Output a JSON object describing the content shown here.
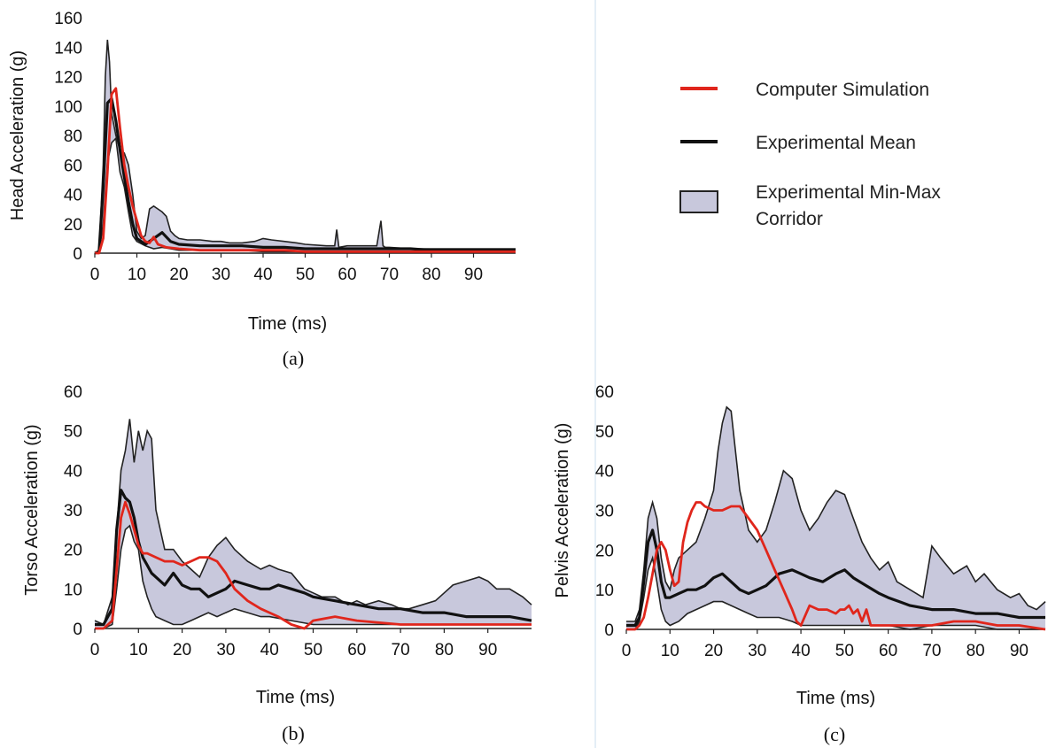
{
  "legend": {
    "simulation": "Computer Simulation",
    "mean": "Experimental Mean",
    "corridor_line1": "Experimental Min-Max",
    "corridor_line2": "Corridor"
  },
  "colors": {
    "simulation": "#e0261c",
    "mean": "#111111",
    "corridor_fill": "#c8c8dc",
    "corridor_edge": "#222222"
  },
  "chart_data": [
    {
      "type": "line",
      "caption": "(a)",
      "xlabel": "Time (ms)",
      "ylabel": "Head Acceleration (g)",
      "xlim": [
        0,
        100
      ],
      "ylim": [
        0,
        160
      ],
      "xticks": [
        0,
        10,
        20,
        30,
        40,
        50,
        60,
        70,
        80,
        90
      ],
      "yticks": [
        0,
        20,
        40,
        60,
        80,
        100,
        120,
        140,
        160
      ],
      "series": [
        {
          "role": "max",
          "x": [
            0,
            1,
            2,
            2.5,
            3,
            3.5,
            4,
            5,
            6,
            7,
            8,
            9,
            10,
            11,
            12,
            13,
            14,
            15,
            16,
            17,
            18,
            19,
            20,
            22,
            25,
            28,
            30,
            32,
            35,
            38,
            40,
            42,
            45,
            48,
            50,
            55,
            57,
            57.5,
            58,
            60,
            65,
            67,
            68,
            68.5,
            69,
            70,
            75,
            80,
            85,
            90,
            95,
            100
          ],
          "y": [
            0,
            2,
            60,
            120,
            145,
            130,
            95,
            80,
            70,
            68,
            60,
            40,
            15,
            10,
            12,
            30,
            32,
            30,
            28,
            25,
            15,
            12,
            10,
            9,
            9,
            8,
            8,
            7,
            7,
            8,
            10,
            9,
            8,
            7,
            6,
            5,
            5,
            16,
            4,
            5,
            5,
            5,
            22,
            5,
            4,
            4,
            3,
            3,
            3,
            3,
            3,
            3
          ]
        },
        {
          "role": "min",
          "x": [
            0,
            1,
            2,
            3,
            4,
            5,
            6,
            7,
            8,
            9,
            10,
            12,
            14,
            16,
            18,
            20,
            25,
            30,
            35,
            40,
            45,
            50,
            55,
            60,
            65,
            70,
            75,
            80,
            85,
            90,
            95,
            100
          ],
          "y": [
            0,
            0,
            20,
            62,
            75,
            78,
            55,
            45,
            28,
            12,
            8,
            5,
            3,
            4,
            3,
            2,
            2,
            2,
            2,
            1,
            1,
            1,
            1,
            1,
            1,
            1,
            1,
            1,
            1,
            1,
            1,
            1
          ]
        },
        {
          "role": "mean",
          "x": [
            0,
            1,
            2,
            3,
            4,
            5,
            6,
            7,
            8,
            9,
            10,
            12,
            14,
            16,
            18,
            20,
            25,
            30,
            35,
            40,
            45,
            50,
            55,
            60,
            65,
            70,
            75,
            80,
            85,
            90,
            95,
            100
          ],
          "y": [
            0,
            1,
            45,
            102,
            105,
            90,
            70,
            52,
            35,
            20,
            10,
            6,
            10,
            14,
            8,
            6,
            5,
            5,
            5,
            4,
            4,
            3,
            3,
            3,
            3,
            3,
            3,
            2,
            2,
            2,
            2,
            2
          ]
        },
        {
          "role": "simulation",
          "x": [
            0,
            1,
            2,
            3,
            4,
            5,
            6,
            7,
            8,
            9,
            10,
            11,
            12,
            13,
            14,
            15,
            17,
            20,
            25,
            30,
            35,
            40,
            45,
            50,
            60,
            70,
            80,
            90,
            100
          ],
          "y": [
            0,
            0,
            10,
            55,
            108,
            112,
            85,
            60,
            45,
            32,
            22,
            12,
            8,
            7,
            11,
            6,
            4,
            3,
            2,
            2,
            2,
            2,
            2,
            1,
            1,
            1,
            1,
            1,
            1
          ]
        }
      ]
    },
    {
      "type": "line",
      "caption": "(b)",
      "xlabel": "Time (ms)",
      "ylabel": "Torso Acceleration (g)",
      "xlim": [
        0,
        100
      ],
      "ylim": [
        0,
        60
      ],
      "xticks": [
        0,
        10,
        20,
        30,
        40,
        50,
        60,
        70,
        80,
        90
      ],
      "yticks": [
        0,
        10,
        20,
        30,
        40,
        50,
        60
      ],
      "series": [
        {
          "role": "max",
          "x": [
            0,
            2,
            4,
            5,
            6,
            7,
            8,
            9,
            10,
            11,
            12,
            13,
            14,
            16,
            18,
            20,
            22,
            24,
            26,
            28,
            30,
            32,
            35,
            38,
            40,
            42,
            45,
            48,
            50,
            52,
            55,
            58,
            60,
            62,
            65,
            68,
            70,
            72,
            75,
            78,
            80,
            82,
            85,
            88,
            90,
            92,
            95,
            98,
            100
          ],
          "y": [
            2,
            1,
            8,
            25,
            40,
            45,
            53,
            42,
            50,
            45,
            50,
            48,
            30,
            20,
            20,
            17,
            15,
            13,
            18,
            21,
            23,
            20,
            17,
            15,
            16,
            15,
            14,
            10,
            9,
            8,
            8,
            6,
            7,
            6,
            7,
            6,
            5,
            5,
            6,
            7,
            9,
            11,
            12,
            13,
            12,
            10,
            10,
            8,
            6
          ]
        },
        {
          "role": "min",
          "x": [
            0,
            2,
            4,
            5,
            6,
            7,
            8,
            9,
            10,
            11,
            12,
            13,
            14,
            16,
            18,
            20,
            22,
            24,
            26,
            28,
            30,
            32,
            35,
            38,
            40,
            45,
            50,
            55,
            60,
            65,
            70,
            75,
            80,
            85,
            90,
            95,
            100
          ],
          "y": [
            0,
            0,
            1,
            10,
            20,
            25,
            26,
            22,
            20,
            12,
            8,
            5,
            3,
            2,
            1,
            1,
            2,
            3,
            4,
            3,
            4,
            5,
            4,
            3,
            3,
            2,
            1,
            1,
            1,
            1,
            1,
            1,
            1,
            1,
            1,
            1,
            1
          ]
        },
        {
          "role": "mean",
          "x": [
            0,
            2,
            4,
            5,
            6,
            7,
            8,
            9,
            10,
            11,
            12,
            13,
            14,
            16,
            18,
            20,
            22,
            24,
            26,
            28,
            30,
            32,
            35,
            38,
            40,
            42,
            45,
            48,
            50,
            55,
            60,
            65,
            70,
            75,
            80,
            85,
            90,
            95,
            100
          ],
          "y": [
            1,
            1,
            5,
            25,
            35,
            33,
            32,
            28,
            22,
            18,
            16,
            14,
            13,
            11,
            14,
            11,
            10,
            10,
            8,
            9,
            10,
            12,
            11,
            10,
            10,
            11,
            10,
            9,
            8,
            7,
            6,
            5,
            5,
            4,
            4,
            3,
            3,
            3,
            2
          ]
        },
        {
          "role": "simulation",
          "x": [
            0,
            2,
            4,
            5,
            6,
            7,
            8,
            9,
            10,
            11,
            12,
            14,
            16,
            18,
            20,
            22,
            24,
            26,
            28,
            30,
            32,
            35,
            38,
            40,
            42,
            45,
            48,
            50,
            55,
            60,
            70,
            80,
            90,
            100
          ],
          "y": [
            0,
            0,
            2,
            15,
            28,
            32,
            29,
            25,
            21,
            19,
            19,
            18,
            17,
            17,
            16,
            17,
            18,
            18,
            17,
            14,
            10,
            7,
            5,
            4,
            3,
            1,
            0,
            2,
            3,
            2,
            1,
            1,
            1,
            1
          ]
        }
      ]
    },
    {
      "type": "line",
      "caption": "(c)",
      "xlabel": "Time (ms)",
      "ylabel": "Pelvis Acceleration (g)",
      "xlim": [
        0,
        96
      ],
      "ylim": [
        0,
        60
      ],
      "xticks": [
        0,
        10,
        20,
        30,
        40,
        50,
        60,
        70,
        80,
        90
      ],
      "yticks": [
        0,
        10,
        20,
        30,
        40,
        50,
        60
      ],
      "series": [
        {
          "role": "max",
          "x": [
            0,
            2,
            3,
            4,
            5,
            6,
            7,
            8,
            9,
            10,
            11,
            12,
            14,
            16,
            18,
            20,
            21,
            22,
            23,
            24,
            25,
            26,
            28,
            30,
            32,
            34,
            36,
            38,
            40,
            42,
            44,
            46,
            48,
            50,
            52,
            54,
            56,
            58,
            60,
            62,
            65,
            68,
            70,
            72,
            75,
            78,
            80,
            82,
            85,
            88,
            90,
            92,
            94,
            96
          ],
          "y": [
            2,
            2,
            5,
            15,
            28,
            32,
            28,
            18,
            12,
            10,
            15,
            18,
            20,
            22,
            28,
            35,
            45,
            52,
            56,
            55,
            45,
            35,
            25,
            22,
            25,
            32,
            40,
            38,
            30,
            25,
            28,
            32,
            35,
            34,
            28,
            22,
            18,
            15,
            17,
            12,
            10,
            8,
            21,
            18,
            14,
            16,
            12,
            14,
            10,
            8,
            9,
            6,
            5,
            7
          ]
        },
        {
          "role": "min",
          "x": [
            0,
            2,
            3,
            4,
            5,
            6,
            7,
            8,
            9,
            10,
            12,
            14,
            16,
            18,
            20,
            22,
            24,
            26,
            28,
            30,
            32,
            35,
            38,
            40,
            45,
            50,
            55,
            60,
            65,
            70,
            75,
            80,
            85,
            90,
            96
          ],
          "y": [
            0,
            0,
            2,
            8,
            15,
            18,
            12,
            5,
            2,
            1,
            2,
            4,
            5,
            6,
            7,
            7,
            6,
            5,
            4,
            3,
            3,
            3,
            2,
            1,
            1,
            1,
            1,
            1,
            0,
            1,
            1,
            1,
            0,
            0,
            0
          ]
        },
        {
          "role": "mean",
          "x": [
            0,
            2,
            3,
            4,
            5,
            6,
            7,
            8,
            9,
            10,
            12,
            14,
            16,
            18,
            20,
            22,
            24,
            26,
            28,
            30,
            32,
            35,
            38,
            40,
            42,
            45,
            48,
            50,
            52,
            55,
            58,
            60,
            65,
            70,
            75,
            80,
            85,
            90,
            96
          ],
          "y": [
            1,
            1,
            3,
            12,
            22,
            25,
            20,
            12,
            8,
            8,
            9,
            10,
            10,
            11,
            13,
            14,
            12,
            10,
            9,
            10,
            11,
            14,
            15,
            14,
            13,
            12,
            14,
            15,
            13,
            11,
            9,
            8,
            6,
            5,
            5,
            4,
            4,
            3,
            3
          ]
        },
        {
          "role": "simulation",
          "x": [
            0,
            2,
            3,
            4,
            5,
            6,
            7,
            8,
            9,
            10,
            11,
            12,
            13,
            14,
            15,
            16,
            17,
            18,
            20,
            22,
            24,
            26,
            28,
            30,
            32,
            34,
            36,
            38,
            39,
            40,
            42,
            44,
            46,
            48,
            49,
            50,
            51,
            52,
            53,
            54,
            55,
            56,
            60,
            65,
            70,
            75,
            80,
            85,
            90,
            96
          ],
          "y": [
            0,
            0,
            1,
            3,
            8,
            14,
            20,
            22,
            20,
            15,
            11,
            12,
            22,
            27,
            30,
            32,
            32,
            31,
            30,
            30,
            31,
            31,
            28,
            25,
            20,
            15,
            10,
            5,
            2,
            1,
            6,
            5,
            5,
            4,
            5,
            5,
            6,
            4,
            5,
            2,
            5,
            1,
            1,
            1,
            1,
            2,
            2,
            1,
            1,
            0
          ]
        }
      ]
    }
  ]
}
